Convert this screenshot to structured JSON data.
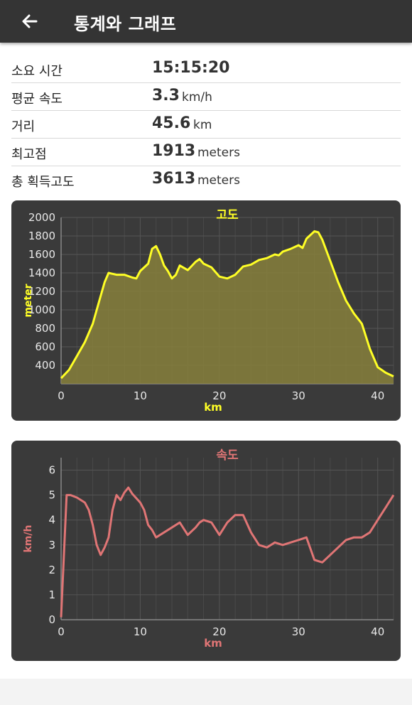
{
  "header": {
    "title": "통계와 그래프",
    "back_icon": "arrow-left-icon"
  },
  "stats": [
    {
      "label": "소요 시간",
      "value": "15:15:20",
      "unit": ""
    },
    {
      "label": "평균 속도",
      "value": "3.3",
      "unit": "km/h"
    },
    {
      "label": "거리",
      "value": "45.6",
      "unit": "km"
    },
    {
      "label": "최고점",
      "value": "1913",
      "unit": "meters"
    },
    {
      "label": "총 획득고도",
      "value": "3613",
      "unit": "meters"
    }
  ],
  "colors": {
    "appbar": "#343434",
    "panel": "#3a3a3a",
    "elevation_line": "#ffff26",
    "elevation_fill": "#87803c",
    "speed_line": "#e07575"
  },
  "chart_data": [
    {
      "type": "area",
      "title": "고도",
      "xlabel": "km",
      "ylabel": "meter",
      "xlim": [
        0,
        42
      ],
      "ylim": [
        200,
        2000
      ],
      "xticks": [
        0,
        10,
        20,
        30,
        40
      ],
      "yticks": [
        400,
        600,
        800,
        1000,
        1200,
        1400,
        1600,
        1800,
        2000
      ],
      "grid": true,
      "x": [
        0,
        1,
        2,
        3,
        4,
        5,
        5.5,
        6,
        6.5,
        7,
        8,
        9,
        9.5,
        10,
        11,
        11.5,
        12,
        12.5,
        13,
        13.5,
        14,
        14.5,
        15,
        16,
        17,
        17.5,
        18,
        19,
        20,
        21,
        22,
        23,
        24,
        25,
        26,
        27,
        27.5,
        28,
        29,
        30,
        30.5,
        31,
        32,
        32.5,
        33,
        34,
        35,
        36,
        37,
        38,
        39,
        40,
        41,
        42
      ],
      "y": [
        260,
        350,
        500,
        650,
        850,
        1150,
        1300,
        1400,
        1390,
        1380,
        1380,
        1350,
        1340,
        1420,
        1500,
        1660,
        1690,
        1600,
        1480,
        1420,
        1340,
        1380,
        1480,
        1430,
        1520,
        1550,
        1500,
        1460,
        1360,
        1340,
        1380,
        1470,
        1490,
        1540,
        1560,
        1600,
        1590,
        1630,
        1660,
        1700,
        1670,
        1770,
        1850,
        1840,
        1760,
        1530,
        1300,
        1100,
        960,
        850,
        580,
        380,
        320,
        280
      ],
      "series_name": "elevation"
    },
    {
      "type": "line",
      "title": "속도",
      "xlabel": "km",
      "ylabel": "km/h",
      "xlim": [
        0,
        42
      ],
      "ylim": [
        0,
        6.5
      ],
      "xticks": [
        0,
        10,
        20,
        30,
        40
      ],
      "yticks": [
        0,
        1,
        2,
        3,
        4,
        5,
        6
      ],
      "grid": true,
      "x": [
        0,
        0.7,
        1.2,
        2,
        3,
        3.5,
        4,
        4.5,
        5,
        5.5,
        6,
        6.5,
        7,
        7.5,
        8,
        8.5,
        9,
        10,
        10.5,
        11,
        11.5,
        12,
        13,
        14,
        15,
        16,
        17,
        17.5,
        18,
        19,
        20,
        21,
        22,
        23,
        24,
        25,
        26,
        26.5,
        27,
        28,
        29,
        30,
        31,
        32,
        33,
        34,
        35,
        36,
        37,
        38,
        39,
        40,
        41,
        42
      ],
      "y": [
        0.1,
        5.0,
        5.0,
        4.9,
        4.7,
        4.4,
        3.8,
        3.0,
        2.6,
        2.9,
        3.3,
        4.4,
        5.0,
        4.8,
        5.1,
        5.3,
        5.05,
        4.7,
        4.4,
        3.8,
        3.6,
        3.3,
        3.5,
        3.7,
        3.9,
        3.4,
        3.7,
        3.9,
        4.0,
        3.9,
        3.4,
        3.9,
        4.2,
        4.2,
        3.5,
        3.0,
        2.9,
        3.0,
        3.1,
        3.0,
        3.1,
        3.2,
        3.3,
        2.4,
        2.3,
        2.6,
        2.9,
        3.2,
        3.3,
        3.3,
        3.5,
        4.0,
        4.5,
        5.0
      ],
      "series_name": "speed"
    }
  ]
}
